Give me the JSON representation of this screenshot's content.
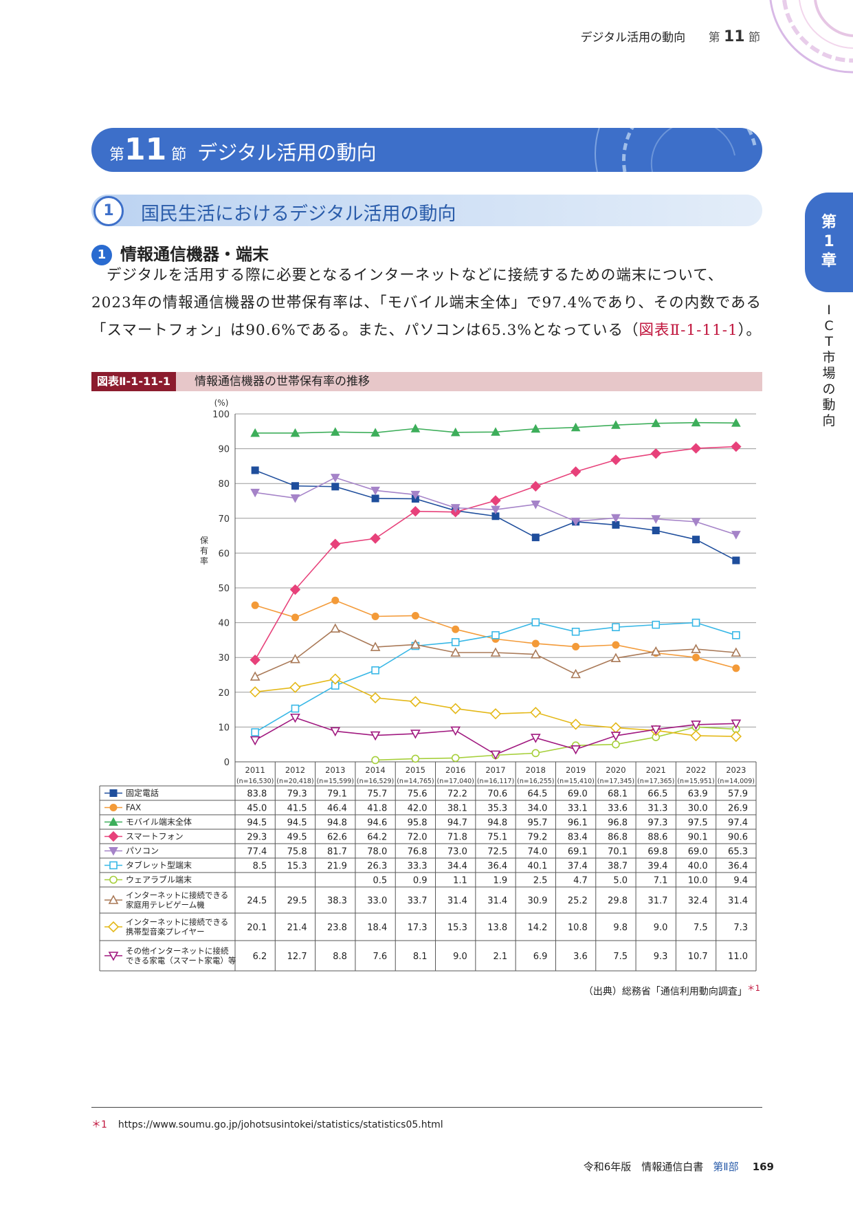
{
  "header": {
    "title": "デジタル活用の動向",
    "section_prefix": "第",
    "section_num": "11",
    "section_suffix": "節"
  },
  "banner": {
    "prefix": "第",
    "num": "11",
    "suffix": "節",
    "title": "デジタル活用の動向"
  },
  "subsection": {
    "num": "1",
    "title": "国民生活におけるデジタル活用の動向"
  },
  "topic": {
    "num": "1",
    "title": "情報通信機器・端末"
  },
  "body": {
    "text": "デジタルを活用する際に必要となるインターネットなどに接続するための端末について、2023年の情報通信機器の世帯保有率は、「モバイル端末全体」で97.4%であり、その内数である「スマートフォン」は90.6%である。また、パソコンは65.3%となっている（",
    "ref": "図表Ⅱ-1-11-1",
    "end": "）。"
  },
  "side_tab": {
    "line1": "第",
    "line2": "1",
    "line3": "章",
    "vertical": "ICT市場の動向"
  },
  "figure": {
    "label": "図表Ⅱ-1-11-1",
    "title": "情報通信機器の世帯保有率の推移"
  },
  "chart_data": {
    "type": "line",
    "ylabel": "保有率",
    "yunit": "(%)",
    "ylim": [
      0,
      100
    ],
    "yticks": [
      0,
      10,
      20,
      30,
      40,
      50,
      60,
      70,
      80,
      90,
      100
    ],
    "categories": [
      "2011",
      "2012",
      "2013",
      "2014",
      "2015",
      "2016",
      "2017",
      "2018",
      "2019",
      "2020",
      "2021",
      "2022",
      "2023"
    ],
    "sample_sizes": [
      "(n=16,530)",
      "(n=20,418)",
      "(n=15,599)",
      "(n=16,529)",
      "(n=14,765)",
      "(n=17,040)",
      "(n=16,117)",
      "(n=16,255)",
      "(n=15,410)",
      "(n=17,345)",
      "(n=17,365)",
      "(n=15,951)",
      "(n=14,009)"
    ],
    "series": [
      {
        "name": "固定電話",
        "color": "#1f4e9c",
        "marker": "square-filled",
        "values": [
          83.8,
          79.3,
          79.1,
          75.7,
          75.6,
          72.2,
          70.6,
          64.5,
          69.0,
          68.1,
          66.5,
          63.9,
          57.9
        ]
      },
      {
        "name": "FAX",
        "color": "#f39a38",
        "marker": "circle-filled",
        "values": [
          45.0,
          41.5,
          46.4,
          41.8,
          42.0,
          38.1,
          35.3,
          34.0,
          33.1,
          33.6,
          31.3,
          30.0,
          26.9
        ]
      },
      {
        "name": "モバイル端末全体",
        "color": "#3dae5a",
        "marker": "triangle-filled",
        "values": [
          94.5,
          94.5,
          94.8,
          94.6,
          95.8,
          94.7,
          94.8,
          95.7,
          96.1,
          96.8,
          97.3,
          97.5,
          97.4
        ]
      },
      {
        "name": "スマートフォン",
        "color": "#e7417a",
        "marker": "diamond-filled",
        "values": [
          29.3,
          49.5,
          62.6,
          64.2,
          72.0,
          71.8,
          75.1,
          79.2,
          83.4,
          86.8,
          88.6,
          90.1,
          90.6
        ]
      },
      {
        "name": "パソコン",
        "color": "#a583c8",
        "marker": "triangle-down-filled",
        "values": [
          77.4,
          75.8,
          81.7,
          78.0,
          76.8,
          73.0,
          72.5,
          74.0,
          69.1,
          70.1,
          69.8,
          69.0,
          65.3
        ]
      },
      {
        "name": "タブレット型端末",
        "color": "#37b7e6",
        "marker": "square-open",
        "values": [
          8.5,
          15.3,
          21.9,
          26.3,
          33.3,
          34.4,
          36.4,
          40.1,
          37.4,
          38.7,
          39.4,
          40.0,
          36.4
        ]
      },
      {
        "name": "ウェアラブル端末",
        "color": "#a6cf3a",
        "marker": "circle-open",
        "values": [
          null,
          null,
          null,
          0.5,
          0.9,
          1.1,
          1.9,
          2.5,
          4.7,
          5.0,
          7.1,
          10.0,
          9.4
        ]
      },
      {
        "name": "インターネットに接続できる家庭用テレビゲーム機",
        "label_lines": [
          "インターネットに接続できる",
          "家庭用テレビゲーム機"
        ],
        "color": "#a97957",
        "marker": "triangle-open",
        "values": [
          24.5,
          29.5,
          38.3,
          33.0,
          33.7,
          31.4,
          31.4,
          30.9,
          25.2,
          29.8,
          31.7,
          32.4,
          31.4
        ]
      },
      {
        "name": "インターネットに接続できる携帯型音楽プレイヤー",
        "label_lines": [
          "インターネットに接続できる",
          "携帯型音楽プレイヤー"
        ],
        "color": "#e4b817",
        "marker": "diamond-open",
        "values": [
          20.1,
          21.4,
          23.8,
          18.4,
          17.3,
          15.3,
          13.8,
          14.2,
          10.8,
          9.8,
          9.0,
          7.5,
          7.3
        ]
      },
      {
        "name": "その他インターネットに接続できる家電（スマート家電）等",
        "label_lines": [
          "その他インターネットに接続",
          "できる家電（スマート家電）等"
        ],
        "color": "#a0187f",
        "marker": "triangle-down-open",
        "values": [
          6.2,
          12.7,
          8.8,
          7.6,
          8.1,
          9.0,
          2.1,
          6.9,
          3.6,
          7.5,
          9.3,
          10.7,
          11.0
        ]
      }
    ]
  },
  "source": {
    "text": "（出典）総務省「通信利用動向調査」",
    "mark": "＊1"
  },
  "footnote": {
    "mark": "＊1",
    "url": "https://www.soumu.go.jp/johotsusintokei/statistics/statistics05.html"
  },
  "footer": {
    "book": "令和6年版　情報通信白書",
    "part": "第Ⅱ部",
    "page": "169"
  }
}
